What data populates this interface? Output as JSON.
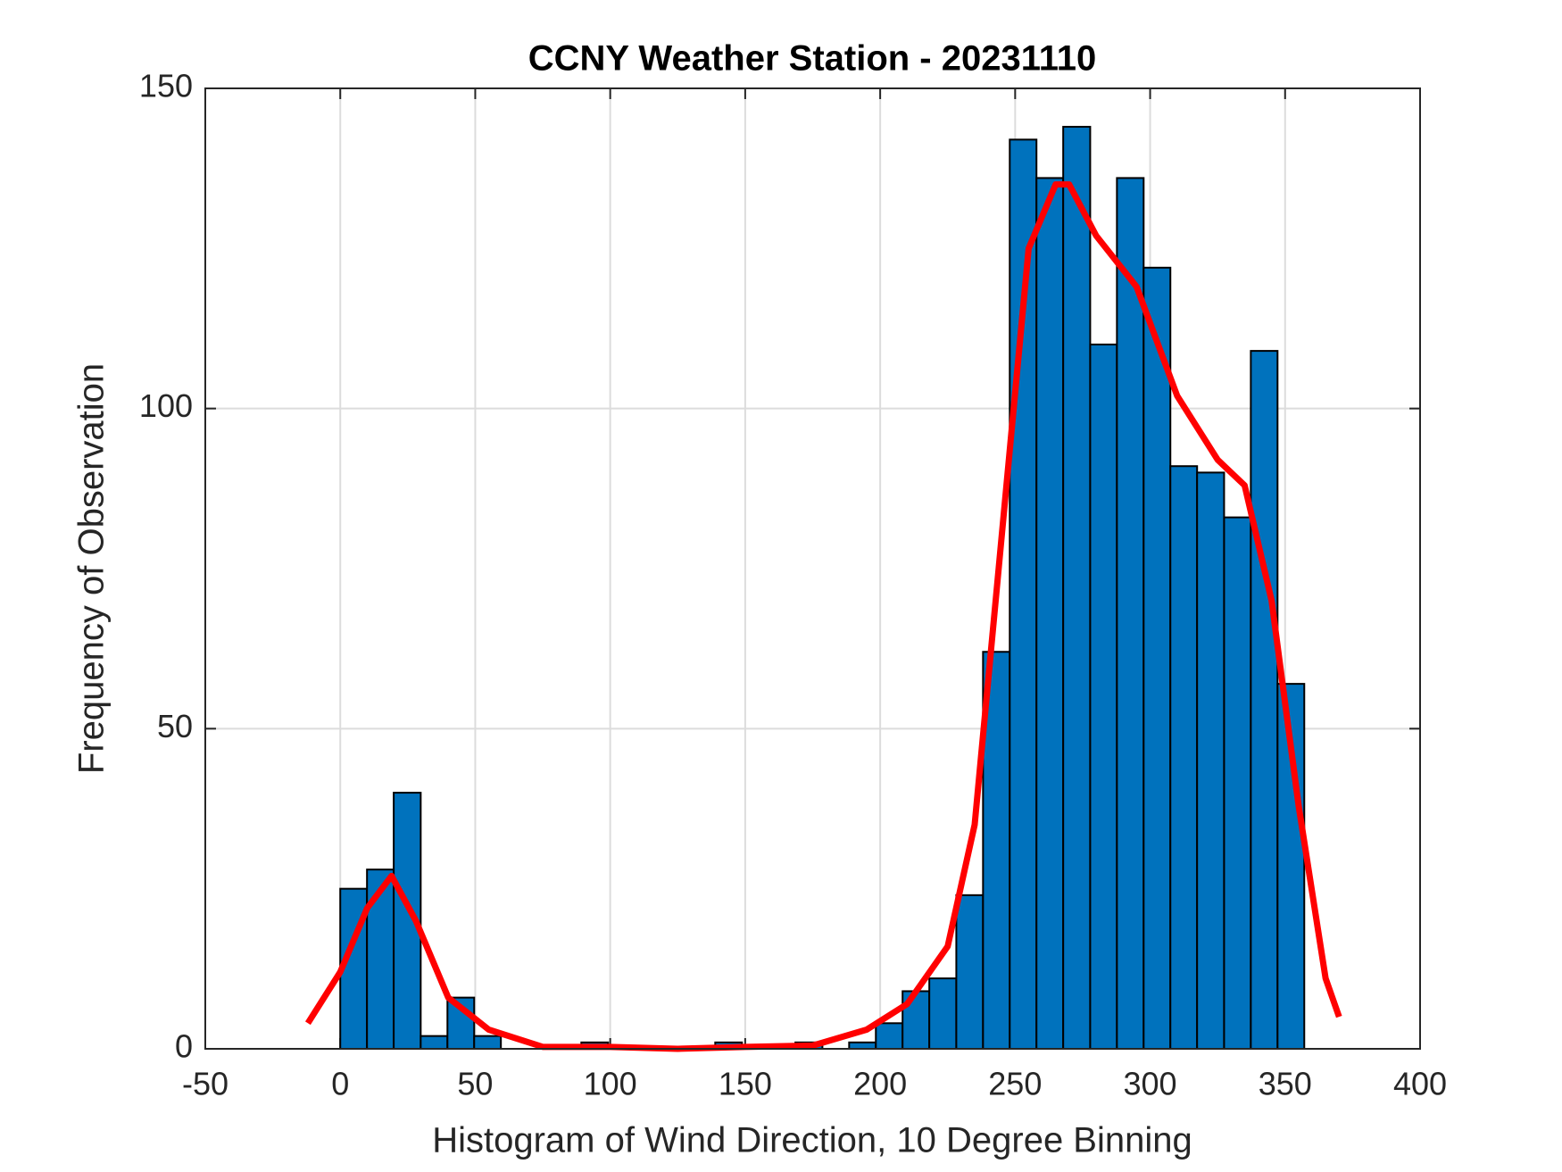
{
  "chart_data": {
    "type": "histogram",
    "title": "CCNY Weather Station - 20231110",
    "xlabel": "Histogram of Wind Direction, 10 Degree Binning",
    "ylabel": "Frequency of Observation",
    "bins": [
      0,
      9.9,
      19.8,
      29.8,
      39.7,
      49.6,
      59.5,
      69.4,
      79.4,
      89.3,
      99.2,
      109.1,
      119,
      129,
      138.9,
      148.8,
      158.7,
      168.6,
      178.6,
      188.5,
      198.4,
      208.3,
      218.2,
      228.2,
      238.1,
      248,
      257.9,
      267.8,
      277.8,
      287.7,
      297.6,
      307.5,
      317.4,
      327.4,
      337.3,
      347.2,
      357.1
    ],
    "counts": [
      25,
      28,
      40,
      2,
      8,
      2,
      0,
      0,
      0,
      1,
      0,
      0,
      0,
      0,
      1,
      0,
      0,
      1,
      0,
      1,
      4,
      9,
      11,
      24,
      62,
      142,
      136,
      144,
      110,
      136,
      122,
      91,
      90,
      83,
      109,
      57
    ],
    "color": "#0072bd",
    "curve": {
      "color": "#ff0000",
      "x": [
        -12,
        0,
        10,
        19,
        28,
        40,
        55,
        75,
        100,
        125,
        150,
        175,
        195,
        210,
        225,
        235,
        245,
        255,
        265,
        270,
        280,
        295,
        310,
        325,
        335,
        345,
        355,
        365,
        370
      ],
      "y": [
        4,
        12,
        22,
        27,
        20,
        8,
        3,
        0.3,
        0.3,
        0,
        0.3,
        0.5,
        3,
        7,
        16,
        35,
        80,
        125,
        135,
        135,
        127,
        119,
        102,
        92,
        88,
        70,
        38,
        11,
        5
      ]
    },
    "xlim": [
      -50,
      400
    ],
    "xticks": [
      -50,
      0,
      50,
      100,
      150,
      200,
      250,
      300,
      350,
      400
    ],
    "ylim": [
      0,
      150
    ],
    "yticks": [
      0,
      50,
      100,
      150
    ],
    "grid": true
  }
}
